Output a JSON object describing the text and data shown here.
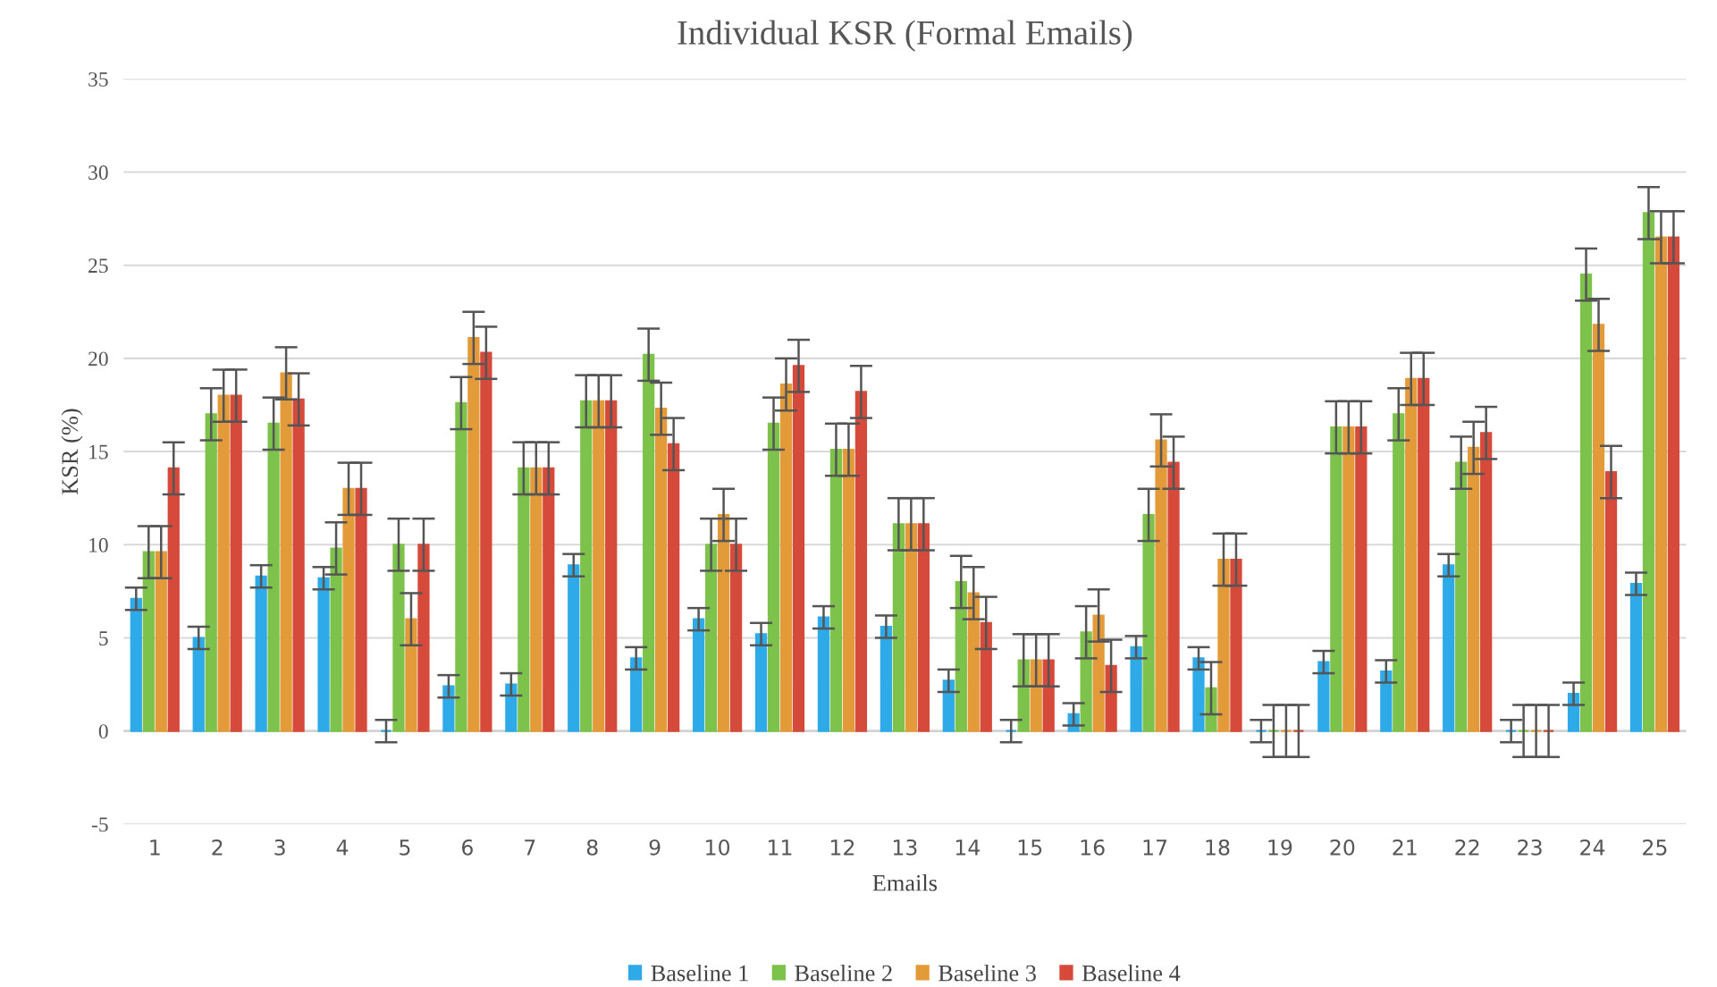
{
  "chart_data": {
    "type": "bar",
    "title": "Individual KSR (Formal Emails)",
    "xlabel": "Emails",
    "ylabel": "KSR (%)",
    "categories": [
      "1",
      "2",
      "3",
      "4",
      "5",
      "6",
      "7",
      "8",
      "9",
      "10",
      "11",
      "12",
      "13",
      "14",
      "15",
      "16",
      "17",
      "18",
      "19",
      "20",
      "21",
      "22",
      "23",
      "24",
      "25"
    ],
    "series": [
      {
        "name": "Baseline 1",
        "color": "#2eaae8",
        "values": [
          7.1,
          5.0,
          8.3,
          8.2,
          0,
          2.4,
          2.5,
          8.9,
          3.9,
          6.0,
          5.2,
          6.1,
          5.6,
          2.7,
          0,
          0.9,
          4.5,
          3.9,
          0,
          3.7,
          3.2,
          8.9,
          0,
          2.0,
          7.9
        ],
        "errors": [
          0.6,
          0.6,
          0.6,
          0.6,
          0.6,
          0.6,
          0.6,
          0.6,
          0.6,
          0.6,
          0.6,
          0.6,
          0.6,
          0.6,
          0.6,
          0.6,
          0.6,
          0.6,
          0.6,
          0.6,
          0.6,
          0.6,
          0.6,
          0.6,
          0.6
        ]
      },
      {
        "name": "Baseline 2",
        "color": "#7dc24b",
        "values": [
          9.6,
          17.0,
          16.5,
          9.8,
          10.0,
          17.6,
          14.1,
          17.7,
          20.2,
          10.0,
          16.5,
          15.1,
          11.1,
          8.0,
          3.8,
          5.3,
          11.6,
          2.3,
          0,
          16.3,
          17.0,
          14.4,
          0,
          24.5,
          27.8
        ],
        "errors": [
          1.4,
          1.4,
          1.4,
          1.4,
          1.4,
          1.4,
          1.4,
          1.4,
          1.4,
          1.4,
          1.4,
          1.4,
          1.4,
          1.4,
          1.4,
          1.4,
          1.4,
          1.4,
          1.4,
          1.4,
          1.4,
          1.4,
          1.4,
          1.4,
          1.4
        ]
      },
      {
        "name": "Baseline 3",
        "color": "#e39b3a",
        "values": [
          9.6,
          18.0,
          19.2,
          13.0,
          6.0,
          21.1,
          14.1,
          17.7,
          17.3,
          11.6,
          18.6,
          15.1,
          11.1,
          7.4,
          3.8,
          6.2,
          15.6,
          9.2,
          0,
          16.3,
          18.9,
          15.2,
          0,
          21.8,
          26.5
        ],
        "errors": [
          1.4,
          1.4,
          1.4,
          1.4,
          1.4,
          1.4,
          1.4,
          1.4,
          1.4,
          1.4,
          1.4,
          1.4,
          1.4,
          1.4,
          1.4,
          1.4,
          1.4,
          1.4,
          1.4,
          1.4,
          1.4,
          1.4,
          1.4,
          1.4,
          1.4
        ]
      },
      {
        "name": "Baseline 4",
        "color": "#d64a3b",
        "values": [
          14.1,
          18.0,
          17.8,
          13.0,
          10.0,
          20.3,
          14.1,
          17.7,
          15.4,
          10.0,
          19.6,
          18.2,
          11.1,
          5.8,
          3.8,
          3.5,
          14.4,
          9.2,
          0,
          16.3,
          18.9,
          16.0,
          0,
          13.9,
          26.5
        ],
        "errors": [
          1.4,
          1.4,
          1.4,
          1.4,
          1.4,
          1.4,
          1.4,
          1.4,
          1.4,
          1.4,
          1.4,
          1.4,
          1.4,
          1.4,
          1.4,
          1.4,
          1.4,
          1.4,
          1.4,
          1.4,
          1.4,
          1.4,
          1.4,
          1.4,
          1.4
        ]
      }
    ],
    "ylim": [
      -5,
      35
    ],
    "yticks": [
      -5,
      0,
      5,
      10,
      15,
      20,
      25,
      30,
      35
    ],
    "grid": "y",
    "legend": "bottom"
  }
}
